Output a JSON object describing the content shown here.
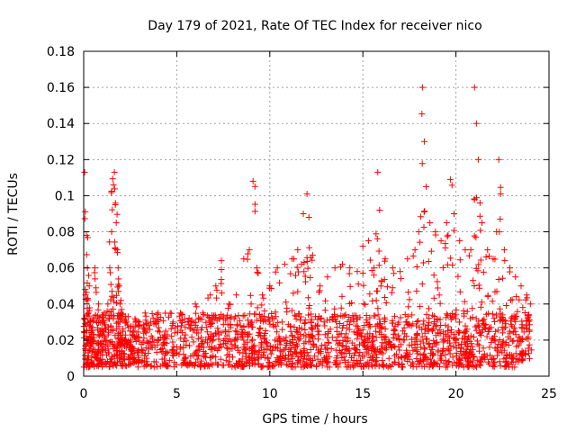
{
  "chart_data": {
    "type": "scatter",
    "title": "Day 179 of 2021, Rate Of TEC Index for receiver nico",
    "xlabel": "GPS time / hours",
    "ylabel": "ROTI / TECUs",
    "xlim": [
      0,
      25
    ],
    "ylim": [
      0,
      0.18
    ],
    "xticks": [
      0,
      5,
      10,
      15,
      20,
      25
    ],
    "yticks": [
      0,
      0.02,
      0.04,
      0.06,
      0.08,
      0.1,
      0.12,
      0.14,
      0.16,
      0.18
    ],
    "xtick_labels": [
      "0",
      "5",
      "10",
      "15",
      "20",
      "25"
    ],
    "ytick_labels": [
      "0",
      "0.02",
      "0.04",
      "0.06",
      "0.08",
      "0.1",
      "0.12",
      "0.14",
      "0.16",
      "0.18"
    ],
    "grid": true,
    "marker": "+",
    "color": "#ff0000",
    "series": [
      {
        "name": "ROTI",
        "x": [
          0.05,
          0.1,
          0.15,
          0.2,
          0.25,
          0.3,
          0.35,
          0.4,
          0.5,
          0.6,
          0.7,
          0.8,
          0.9,
          1.0,
          1.1,
          1.2,
          1.3,
          1.4,
          1.5,
          1.6,
          1.65,
          1.7,
          1.75,
          1.8,
          1.85,
          1.9,
          1.95,
          2.0,
          2.1,
          2.2,
          2.3,
          2.5,
          2.7,
          3.0,
          3.3,
          3.6,
          4.0,
          4.4,
          4.8,
          5.2,
          5.6,
          6.0,
          6.4,
          6.8,
          7.1,
          7.4,
          7.8,
          8.2,
          8.6,
          8.9,
          9.1,
          9.3,
          9.6,
          10.0,
          10.4,
          10.8,
          11.2,
          11.5,
          11.8,
          12.0,
          12.1,
          12.3,
          12.7,
          13.1,
          13.5,
          13.9,
          14.3,
          14.7,
          15.0,
          15.3,
          15.6,
          15.8,
          15.9,
          16.2,
          16.6,
          17.0,
          17.4,
          17.8,
          18.0,
          18.2,
          18.3,
          18.4,
          18.6,
          18.9,
          19.2,
          19.5,
          19.7,
          19.9,
          20.2,
          20.5,
          20.8,
          21.0,
          21.1,
          21.2,
          21.4,
          21.7,
          22.0,
          22.3,
          22.4,
          22.6,
          22.9,
          23.2,
          23.5,
          23.8,
          24.0
        ],
        "y": [
          0.113,
          0.045,
          0.078,
          0.06,
          0.035,
          0.05,
          0.03,
          0.025,
          0.02,
          0.06,
          0.03,
          0.04,
          0.025,
          0.03,
          0.035,
          0.02,
          0.04,
          0.06,
          0.08,
          0.106,
          0.113,
          0.095,
          0.085,
          0.07,
          0.06,
          0.05,
          0.04,
          0.035,
          0.025,
          0.02,
          0.03,
          0.02,
          0.025,
          0.03,
          0.035,
          0.03,
          0.035,
          0.025,
          0.03,
          0.035,
          0.03,
          0.04,
          0.035,
          0.045,
          0.05,
          0.064,
          0.04,
          0.045,
          0.065,
          0.07,
          0.108,
          0.06,
          0.045,
          0.05,
          0.06,
          0.062,
          0.065,
          0.07,
          0.09,
          0.101,
          0.088,
          0.067,
          0.05,
          0.055,
          0.06,
          0.062,
          0.06,
          0.058,
          0.072,
          0.075,
          0.06,
          0.113,
          0.092,
          0.065,
          0.06,
          0.058,
          0.065,
          0.07,
          0.08,
          0.16,
          0.13,
          0.105,
          0.085,
          0.08,
          0.075,
          0.085,
          0.109,
          0.09,
          0.075,
          0.07,
          0.07,
          0.16,
          0.14,
          0.12,
          0.085,
          0.07,
          0.065,
          0.12,
          0.101,
          0.07,
          0.06,
          0.055,
          0.05,
          0.045,
          0.04
        ]
      }
    ],
    "baseline_band": {
      "min": 0.005,
      "typical_max": 0.035,
      "note": "dense background cloud of points across 0-24 h"
    }
  }
}
